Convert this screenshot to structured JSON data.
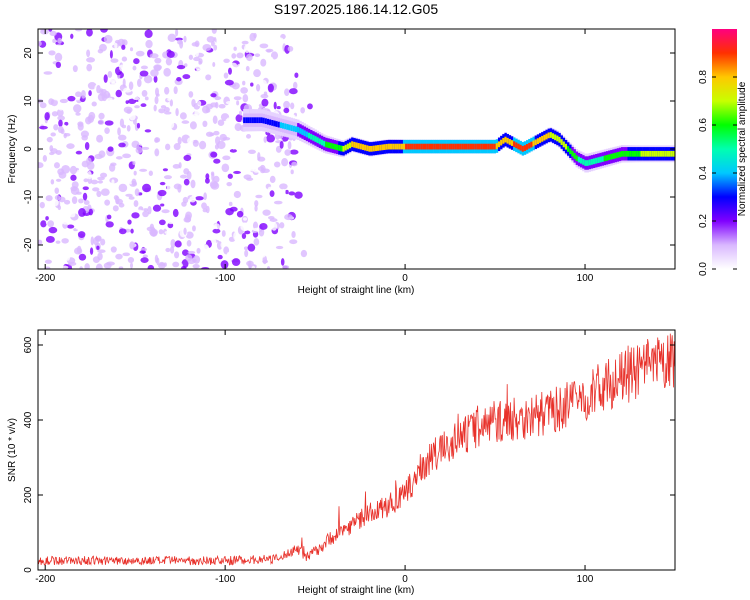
{
  "chart_data": [
    {
      "type": "heatmap",
      "title": "S197.2025.186.14.12.G05",
      "xlabel": "Height of straight line (km)",
      "ylabel": "Frequency (Hz)",
      "xlim": [
        -204,
        150
      ],
      "ylim": [
        -25,
        25
      ],
      "x_ticks": [
        -200,
        -100,
        0,
        100
      ],
      "y_ticks": [
        -20,
        -10,
        0,
        10,
        20
      ],
      "colorbar": {
        "label": "Normalized spectral amplitude",
        "range": [
          0,
          1
        ],
        "ticks": [
          "0.0",
          "0.2",
          "0.4",
          "0.6",
          "0.8"
        ],
        "tick_values": [
          0,
          0.2,
          0.4,
          0.6,
          0.8
        ]
      },
      "ridge": {
        "x": [
          -90,
          -80,
          -70,
          -60,
          -55,
          -50,
          -45,
          -40,
          -35,
          -30,
          -20,
          -10,
          0,
          10,
          20,
          30,
          40,
          50,
          55,
          60,
          65,
          70,
          75,
          80,
          85,
          90,
          95,
          100,
          110,
          120,
          130,
          140,
          150
        ],
        "y": [
          6,
          6,
          5,
          4,
          3,
          2,
          1,
          0.5,
          0,
          1,
          0,
          0.5,
          0.5,
          0.5,
          0.5,
          0.5,
          0.5,
          0.5,
          2,
          1,
          0,
          1,
          2,
          3,
          2,
          0,
          -2,
          -3,
          -2,
          -1,
          -1,
          -1,
          -1
        ],
        "amplitude": [
          0.3,
          0.35,
          0.4,
          0.45,
          0.5,
          0.55,
          0.6,
          0.65,
          0.7,
          0.8,
          0.8,
          0.85,
          0.9,
          0.9,
          0.9,
          0.9,
          0.9,
          0.9,
          0.85,
          0.9,
          0.9,
          0.9,
          0.85,
          0.8,
          0.75,
          0.7,
          0.6,
          0.55,
          0.6,
          0.65,
          0.7,
          0.7,
          0.7
        ]
      },
      "noise_region_x": [
        -204,
        -60
      ]
    },
    {
      "type": "line",
      "xlabel": "Height of straight line (km)",
      "ylabel": "SNR (10 * v/v)",
      "xlim": [
        -204,
        150
      ],
      "ylim": [
        0,
        640
      ],
      "x_ticks": [
        -200,
        -100,
        0,
        100
      ],
      "y_ticks": [
        0,
        200,
        400,
        600
      ],
      "line_color": "#e8312a",
      "trend": {
        "x": [
          -204,
          -150,
          -100,
          -70,
          -60,
          -55,
          -50,
          -40,
          -30,
          -20,
          -10,
          0,
          10,
          20,
          30,
          40,
          50,
          60,
          70,
          80,
          90,
          100,
          110,
          120,
          130,
          140,
          150
        ],
        "y": [
          25,
          25,
          25,
          30,
          60,
          30,
          50,
          90,
          120,
          150,
          170,
          200,
          280,
          320,
          350,
          380,
          395,
          400,
          410,
          420,
          440,
          460,
          490,
          510,
          530,
          545,
          560
        ]
      }
    }
  ]
}
